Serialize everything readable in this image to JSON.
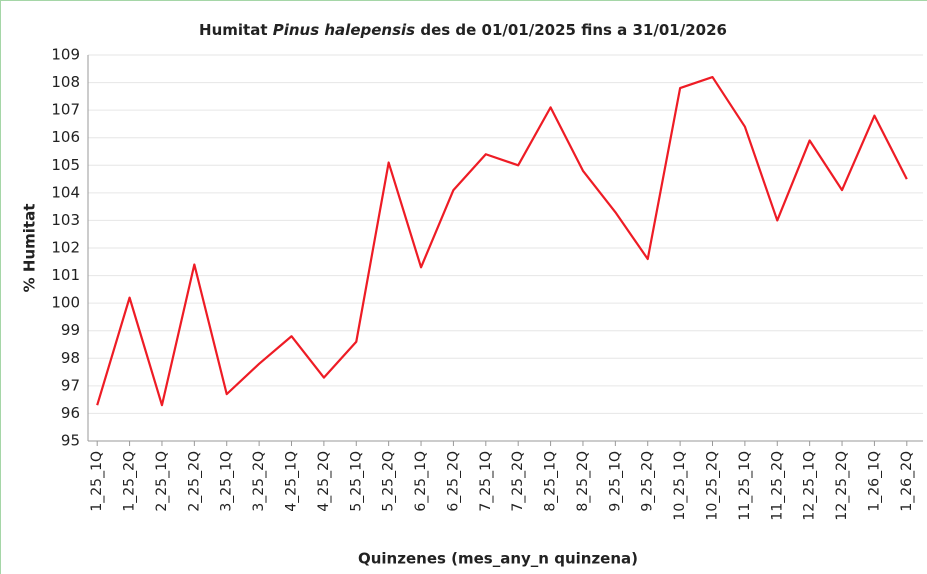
{
  "chart_data": {
    "type": "line",
    "title": {
      "prefix": "Humitat",
      "species": "Pinus halepensis",
      "suffix": "des de 01/01/2025 fins a 31/01/2026"
    },
    "x_label": "Quinzenes (mes_any_n quinzena)",
    "y_label": "% Humitat",
    "categories": [
      "1_25_1Q",
      "1_25_2Q",
      "2_25_1Q",
      "2_25_2Q",
      "3_25_1Q",
      "3_25_2Q",
      "4_25_1Q",
      "4_25_2Q",
      "5_25_1Q",
      "5_25_2Q",
      "6_25_1Q",
      "6_25_2Q",
      "7_25_1Q",
      "7_25_2Q",
      "8_25_1Q",
      "8_25_2Q",
      "9_25_1Q",
      "9_25_2Q",
      "10_25_1Q",
      "10_25_2Q",
      "11_25_1Q",
      "11_25_2Q",
      "12_25_1Q",
      "12_25_2Q",
      "1_26_1Q",
      "1_26_2Q"
    ],
    "values": [
      96.3,
      100.2,
      96.3,
      101.4,
      96.7,
      97.8,
      98.8,
      97.3,
      98.6,
      105.1,
      101.3,
      104.1,
      105.4,
      105.0,
      107.1,
      104.8,
      103.3,
      101.6,
      107.8,
      108.2,
      106.4,
      103.0,
      105.9,
      104.1,
      106.8,
      104.5
    ],
    "color": "#ee1c25",
    "ylim": [
      95,
      109
    ],
    "yticks": [
      95,
      96,
      97,
      98,
      99,
      100,
      101,
      102,
      103,
      104,
      105,
      106,
      107,
      108,
      109
    ],
    "grid": true
  }
}
